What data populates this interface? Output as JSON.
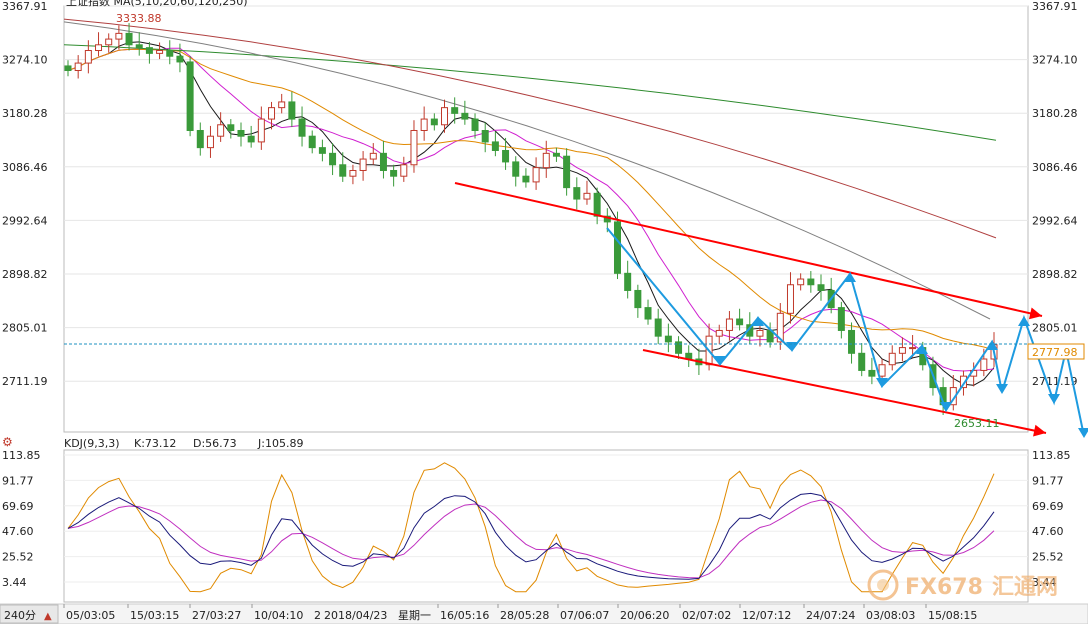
{
  "top_legend": "上证指数 MA(5,10,20,60,120,250)",
  "price_axis": {
    "ticks": [
      "3367.91",
      "3274.10",
      "3180.28",
      "3086.46",
      "2992.64",
      "2898.82",
      "2805.01",
      "2711.19"
    ],
    "min": 2650,
    "max": 3367.91
  },
  "markers": {
    "high_label": "3333.88",
    "low_label": "2653.11",
    "last_price": "2777.98",
    "last_price_color": "#e08a00"
  },
  "kdj": {
    "title": "KDJ(9,3,3)",
    "k_label": "K:73.12",
    "d_label": "D:56.73",
    "j_label": "J:105.89",
    "ticks": [
      "113.85",
      "91.77",
      "69.69",
      "47.60",
      "25.52",
      "3.44"
    ]
  },
  "x_axis": {
    "period_label": "240分",
    "dates": [
      "05/03:05",
      "15/03:15",
      "27/03:27",
      "10/04:10",
      "2",
      "2018/04/23",
      "星期一",
      "16/05:16",
      "28/05:28",
      "07/06:07",
      "20/06:20",
      "02/07:02",
      "12/07:12",
      "24/07:24",
      "03/08:03",
      "15/08:15"
    ]
  },
  "watermark": {
    "brand": "FX678",
    "name": "汇通网"
  },
  "colors": {
    "up": "#c0392b",
    "down": "#3a9a3a",
    "ma5": "#1a1a1a",
    "ma10": "#d020d0",
    "ma20": "#e08a00",
    "ma60": "#808080",
    "ma120": "#b04040",
    "ma250": "#2e8b2e",
    "channel": "#ff0000",
    "projection": "#1e9be0",
    "k": "#1a1a7a",
    "d": "#c030c0",
    "j": "#e08a00"
  },
  "chart_data": {
    "type": "candlestick",
    "title": "上证指数",
    "ylim": [
      2650,
      3367.91
    ],
    "candles_close": [
      3255,
      3268,
      3290,
      3300,
      3310,
      3320,
      3300,
      3295,
      3285,
      3290,
      3280,
      3270,
      3150,
      3120,
      3140,
      3160,
      3150,
      3140,
      3130,
      3170,
      3190,
      3200,
      3170,
      3140,
      3120,
      3110,
      3090,
      3070,
      3080,
      3100,
      3110,
      3080,
      3070,
      3090,
      3150,
      3170,
      3160,
      3190,
      3180,
      3170,
      3150,
      3130,
      3115,
      3095,
      3070,
      3060,
      3085,
      3110,
      3105,
      3050,
      3030,
      3040,
      3000,
      2990,
      2900,
      2870,
      2840,
      2820,
      2790,
      2780,
      2760,
      2750,
      2740,
      2790,
      2800,
      2820,
      2810,
      2790,
      2800,
      2780,
      2830,
      2880,
      2890,
      2880,
      2870,
      2840,
      2800,
      2760,
      2730,
      2720,
      2740,
      2760,
      2770,
      2770,
      2740,
      2700,
      2670,
      2700,
      2720,
      2730,
      2750,
      2775
    ],
    "kdj_range": [
      0,
      113.85
    ],
    "k_last": 73.12,
    "d_last": 56.73,
    "j_last": 105.89
  }
}
